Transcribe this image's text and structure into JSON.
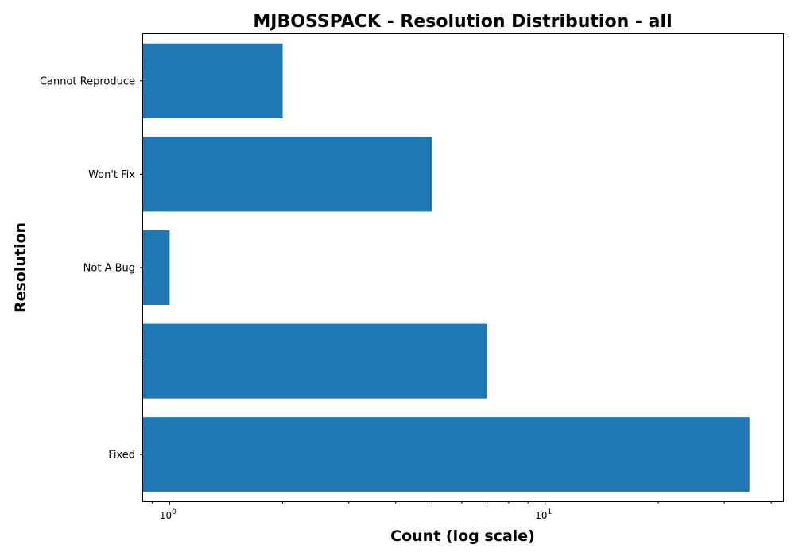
{
  "chart_data": {
    "type": "bar",
    "orientation": "horizontal",
    "title": "MJBOSSPACK - Resolution Distribution - all",
    "xlabel": "Count (log scale)",
    "ylabel": "Resolution",
    "x_scale": "log",
    "xlim": [
      0.85,
      43
    ],
    "x_ticks": [
      {
        "value": 1,
        "base": "10",
        "exp": "0"
      },
      {
        "value": 10,
        "base": "10",
        "exp": "1"
      }
    ],
    "categories": [
      "Fixed",
      "",
      "Not A Bug",
      "Won't Fix",
      "Cannot Reproduce"
    ],
    "values": [
      35,
      7,
      1,
      5,
      2
    ],
    "grid": false,
    "legend": "none",
    "bar_color": "#1f77b4"
  }
}
